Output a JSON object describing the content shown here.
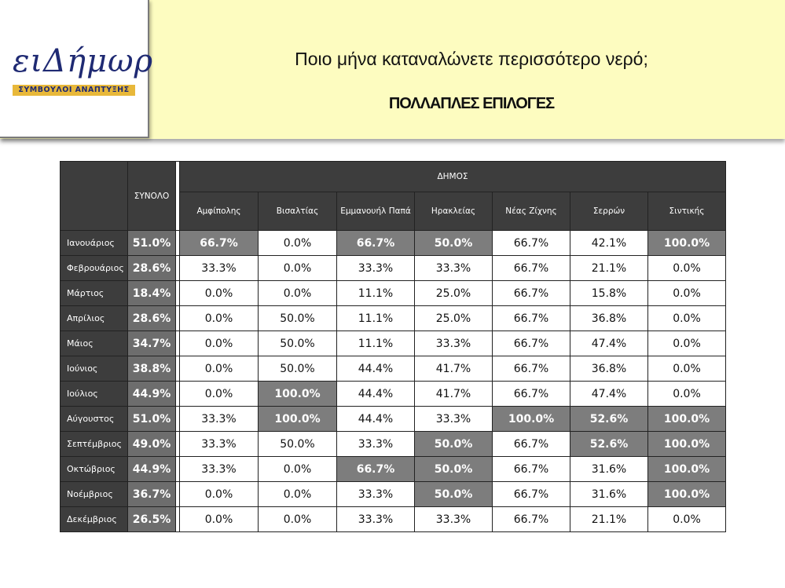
{
  "logo": {
    "text": "ειΔήμωρ",
    "subtitle": "ΣΥΜΒΟΥΛΟΙ ΑΝΑΠΤΥΞΗΣ"
  },
  "title": "Ποιο μήνα καταναλώνετε περισσότερο νερό;",
  "subtitle": "ΠΟΛΛΑΠΛΕΣ ΕΠΙΛΟΓΕΣ",
  "chart_data": {
    "type": "table",
    "total_header": "ΣΥΝΟΛΟ",
    "group_header": "ΔΗΜΟΣ",
    "columns": [
      "Αμφίπολης",
      "Βισαλτίας",
      "Εμμανουήλ Παπά",
      "Ηρακλείας",
      "Νέας Ζίχνης",
      "Σερρών",
      "Σιντικής"
    ],
    "rows": [
      {
        "label": "Ιανουάριος",
        "total": "51.0%",
        "values": [
          "66.7%",
          "0.0%",
          "66.7%",
          "50.0%",
          "66.7%",
          "42.1%",
          "100.0%"
        ],
        "highlight": [
          true,
          false,
          true,
          true,
          false,
          false,
          true
        ]
      },
      {
        "label": "Φεβρουάριος",
        "total": "28.6%",
        "values": [
          "33.3%",
          "0.0%",
          "33.3%",
          "33.3%",
          "66.7%",
          "21.1%",
          "0.0%"
        ],
        "highlight": [
          false,
          false,
          false,
          false,
          false,
          false,
          false
        ]
      },
      {
        "label": "Μάρτιος",
        "total": "18.4%",
        "values": [
          "0.0%",
          "0.0%",
          "11.1%",
          "25.0%",
          "66.7%",
          "15.8%",
          "0.0%"
        ],
        "highlight": [
          false,
          false,
          false,
          false,
          false,
          false,
          false
        ]
      },
      {
        "label": "Απρίλιος",
        "total": "28.6%",
        "values": [
          "0.0%",
          "50.0%",
          "11.1%",
          "25.0%",
          "66.7%",
          "36.8%",
          "0.0%"
        ],
        "highlight": [
          false,
          false,
          false,
          false,
          false,
          false,
          false
        ]
      },
      {
        "label": "Μάιος",
        "total": "34.7%",
        "values": [
          "0.0%",
          "50.0%",
          "11.1%",
          "33.3%",
          "66.7%",
          "47.4%",
          "0.0%"
        ],
        "highlight": [
          false,
          false,
          false,
          false,
          false,
          false,
          false
        ]
      },
      {
        "label": "Ιούνιος",
        "total": "38.8%",
        "values": [
          "0.0%",
          "50.0%",
          "44.4%",
          "41.7%",
          "66.7%",
          "36.8%",
          "0.0%"
        ],
        "highlight": [
          false,
          false,
          false,
          false,
          false,
          false,
          false
        ]
      },
      {
        "label": "Ιούλιος",
        "total": "44.9%",
        "values": [
          "0.0%",
          "100.0%",
          "44.4%",
          "41.7%",
          "66.7%",
          "47.4%",
          "0.0%"
        ],
        "highlight": [
          false,
          true,
          false,
          false,
          false,
          false,
          false
        ]
      },
      {
        "label": "Αύγουστος",
        "total": "51.0%",
        "values": [
          "33.3%",
          "100.0%",
          "44.4%",
          "33.3%",
          "100.0%",
          "52.6%",
          "100.0%"
        ],
        "highlight": [
          false,
          true,
          false,
          false,
          true,
          true,
          true
        ]
      },
      {
        "label": "Σεπτέμβριος",
        "total": "49.0%",
        "values": [
          "33.3%",
          "50.0%",
          "33.3%",
          "50.0%",
          "66.7%",
          "52.6%",
          "100.0%"
        ],
        "highlight": [
          false,
          false,
          false,
          true,
          false,
          true,
          true
        ]
      },
      {
        "label": "Οκτώβριος",
        "total": "44.9%",
        "values": [
          "33.3%",
          "0.0%",
          "66.7%",
          "50.0%",
          "66.7%",
          "31.6%",
          "100.0%"
        ],
        "highlight": [
          false,
          false,
          true,
          true,
          false,
          false,
          true
        ]
      },
      {
        "label": "Νοέμβριος",
        "total": "36.7%",
        "values": [
          "0.0%",
          "0.0%",
          "33.3%",
          "50.0%",
          "66.7%",
          "31.6%",
          "100.0%"
        ],
        "highlight": [
          false,
          false,
          false,
          true,
          false,
          false,
          true
        ]
      },
      {
        "label": "Δεκέμβριος",
        "total": "26.5%",
        "values": [
          "0.0%",
          "0.0%",
          "33.3%",
          "33.3%",
          "66.7%",
          "21.1%",
          "0.0%"
        ],
        "highlight": [
          false,
          false,
          false,
          false,
          false,
          false,
          false
        ]
      }
    ]
  }
}
